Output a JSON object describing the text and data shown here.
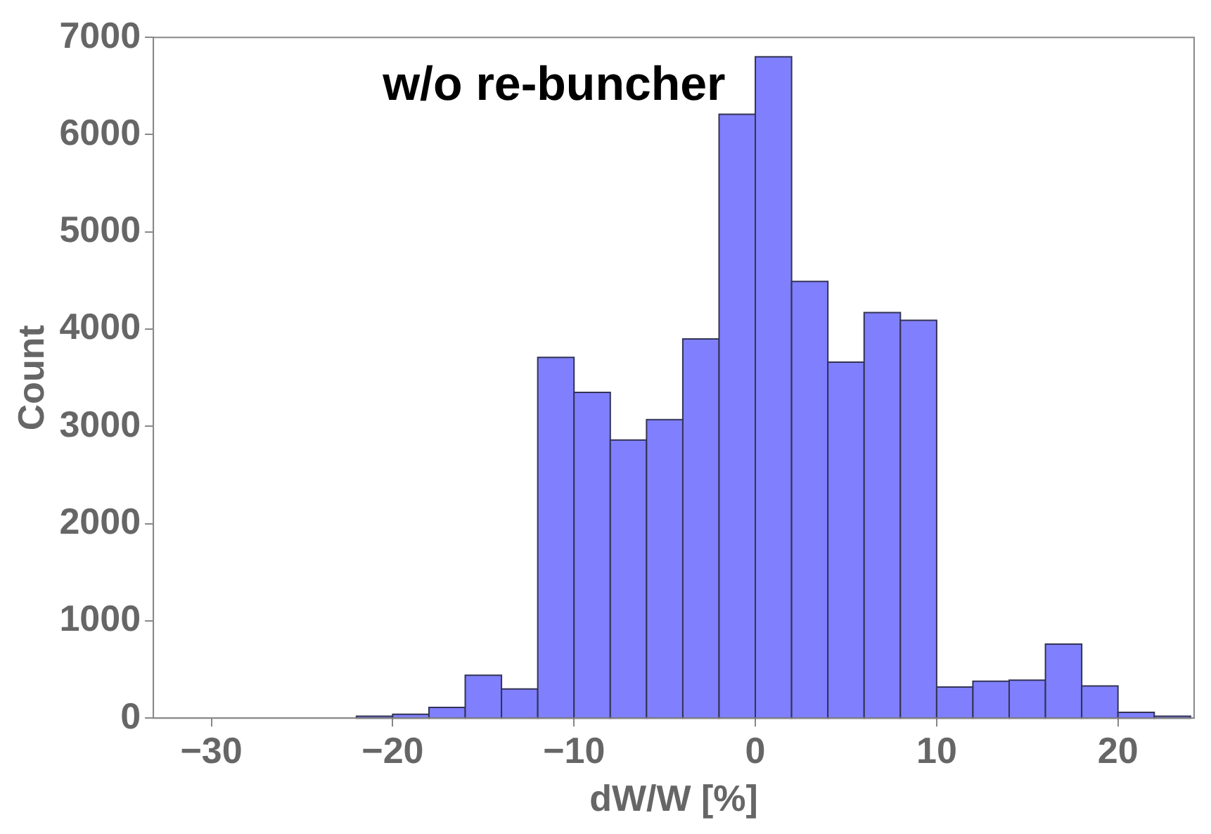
{
  "chart_data": {
    "type": "histogram",
    "title": "w/o re-buncher",
    "xlabel": "dW/W [%]",
    "ylabel": "Count",
    "bins": [
      -22,
      -20,
      -18,
      -16,
      -14,
      -12,
      -10,
      -8,
      -6,
      -4,
      -2,
      0,
      2,
      4,
      6,
      8,
      10,
      12,
      14,
      16,
      18,
      20,
      22,
      24
    ],
    "values": [
      20,
      40,
      110,
      440,
      300,
      3710,
      3350,
      2860,
      3070,
      3900,
      6210,
      6800,
      4490,
      3660,
      4170,
      4090,
      320,
      380,
      390,
      760,
      330,
      60,
      20
    ],
    "color": "#8080ff",
    "xlim": [
      -33.2,
      24.2
    ],
    "xticks": [
      -30,
      -20,
      -10,
      0,
      10,
      20
    ],
    "ylim": [
      0,
      7000
    ],
    "yticks": [
      0,
      1000,
      2000,
      3000,
      4000,
      5000,
      6000,
      7000
    ],
    "grid": false,
    "legend": false
  }
}
